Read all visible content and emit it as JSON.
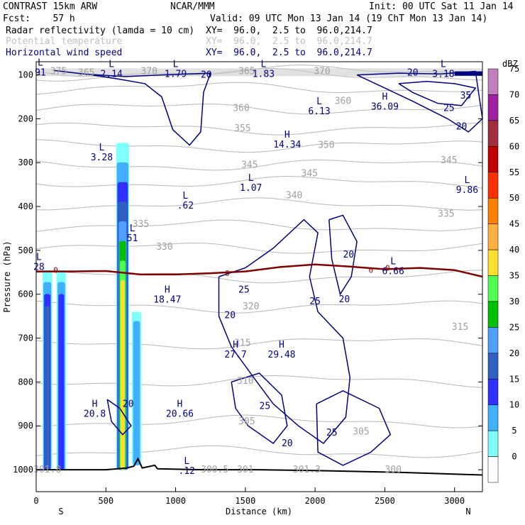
{
  "header": {
    "model": "CONTRAST 15km ARW",
    "org": "NCAR/MMM",
    "init": "Init: 00 UTC Sat 11 Jan 14",
    "fcst": "Fcst:    57 h",
    "valid": "Valid: 09 UTC Mon 13 Jan 14 (19 ChT Mon 13 Jan 14)",
    "fields": [
      {
        "name": "Radar reflectivity (lamda = 10 cm)",
        "xy": "XY=  96.0,  2.5 to  96.0,214.7",
        "color": "#000000"
      },
      {
        "name": "Potential temperature",
        "xy": "XY=  96.0,  2.5 to  96.0,214.7",
        "color": "#c0c0c0"
      },
      {
        "name": "Horizontal wind speed",
        "xy": "XY=  96.0,  2.5 to  96.0,214.7",
        "color": "#000080"
      }
    ]
  },
  "chart_data": {
    "type": "contour-cross-section",
    "xlabel": "Distance (km)",
    "ylabel": "Pressure (hPa)",
    "xlim": [
      0,
      3200
    ],
    "ylim": [
      1050,
      70
    ],
    "x_ticks": [
      0,
      500,
      1000,
      1500,
      2000,
      2500,
      3000
    ],
    "y_ticks": [
      100,
      200,
      300,
      400,
      500,
      600,
      700,
      800,
      900,
      1000
    ],
    "x_end_labels": {
      "left": "S",
      "right": "N"
    },
    "colorbar": {
      "title": "dBZ",
      "levels": [
        0,
        5,
        10,
        15,
        20,
        25,
        30,
        35,
        40,
        45,
        50,
        55,
        60,
        65,
        70,
        75
      ],
      "colors": [
        "#ffffff",
        "#80ffff",
        "#40b0ff",
        "#3030ff",
        "#3060c0",
        "#50a0ff",
        "#00c000",
        "#50ff50",
        "#ffe030",
        "#ffb040",
        "#ff8000",
        "#ff3000",
        "#c00000",
        "#a03040",
        "#a020a0",
        "#c080c0"
      ]
    },
    "reflectivity_columns": [
      {
        "x_km": 80,
        "p_top": 545,
        "p_bottom": 1000,
        "max_dbz": 20
      },
      {
        "x_km": 180,
        "p_top": 545,
        "p_bottom": 1000,
        "max_dbz": 15
      },
      {
        "x_km": 620,
        "p_top": 255,
        "p_bottom": 1000,
        "max_dbz": 40
      },
      {
        "x_km": 720,
        "p_top": 640,
        "p_bottom": 990,
        "max_dbz": 10
      }
    ],
    "freezing_level": {
      "label": "0",
      "x_km": [
        0,
        250,
        500,
        750,
        1000,
        1250,
        1500,
        1750,
        2000,
        2250,
        2500,
        2750,
        3000,
        3200
      ],
      "p_hpa": [
        548,
        548,
        547,
        555,
        555,
        552,
        548,
        538,
        532,
        537,
        543,
        540,
        545,
        560
      ]
    },
    "theta_labels": [
      {
        "v": "375",
        "x": 160,
        "p": 92
      },
      {
        "v": "365",
        "x": 360,
        "p": 95
      },
      {
        "v": "370",
        "x": 810,
        "p": 92
      },
      {
        "v": "365",
        "x": 1510,
        "p": 92
      },
      {
        "v": "370",
        "x": 2050,
        "p": 92
      },
      {
        "v": "360",
        "x": 1470,
        "p": 176
      },
      {
        "v": "360",
        "x": 2200,
        "p": 160
      },
      {
        "v": "355",
        "x": 1480,
        "p": 222
      },
      {
        "v": "350",
        "x": 2080,
        "p": 260
      },
      {
        "v": "345",
        "x": 1530,
        "p": 305
      },
      {
        "v": "345",
        "x": 1960,
        "p": 325
      },
      {
        "v": "345",
        "x": 2960,
        "p": 295
      },
      {
        "v": "340",
        "x": 1850,
        "p": 375
      },
      {
        "v": "335",
        "x": 750,
        "p": 440
      },
      {
        "v": "335",
        "x": 2940,
        "p": 417
      },
      {
        "v": "330",
        "x": 920,
        "p": 492
      },
      {
        "v": "320",
        "x": 1540,
        "p": 628
      },
      {
        "v": "315",
        "x": 1480,
        "p": 711
      },
      {
        "v": "315",
        "x": 3040,
        "p": 675
      },
      {
        "v": "310",
        "x": 1500,
        "p": 798
      },
      {
        "v": "305",
        "x": 1510,
        "p": 890
      },
      {
        "v": "305",
        "x": 2330,
        "p": 913
      },
      {
        "v": "301.8",
        "x": 80,
        "p": 1000
      },
      {
        "v": "300.5",
        "x": 1280,
        "p": 1000
      },
      {
        "v": "301",
        "x": 1500,
        "p": 1000
      },
      {
        "v": "301.3",
        "x": 1940,
        "p": 1000
      },
      {
        "v": "300",
        "x": 2560,
        "p": 1000
      }
    ],
    "wind_labels": [
      {
        "v": "20",
        "x": 1220,
        "p": 100
      },
      {
        "v": "20",
        "x": 2700,
        "p": 95
      },
      {
        "v": "35",
        "x": 3080,
        "p": 148
      },
      {
        "v": "25",
        "x": 2960,
        "p": 176
      },
      {
        "v": "20",
        "x": 3050,
        "p": 218
      },
      {
        "v": "20",
        "x": 2240,
        "p": 510
      },
      {
        "v": "25",
        "x": 1490,
        "p": 590
      },
      {
        "v": "20",
        "x": 2210,
        "p": 612
      },
      {
        "v": "25",
        "x": 2000,
        "p": 617
      },
      {
        "v": "20",
        "x": 1390,
        "p": 648
      },
      {
        "v": "20",
        "x": 660,
        "p": 850
      },
      {
        "v": "25",
        "x": 1640,
        "p": 855
      },
      {
        "v": "20",
        "x": 1800,
        "p": 940
      },
      {
        "v": "25",
        "x": 2120,
        "p": 916
      }
    ],
    "extrema": [
      {
        "t": "L",
        "v": "91",
        "x": 30,
        "p": 82
      },
      {
        "t": "L",
        "v": "2.14",
        "x": 540,
        "p": 85
      },
      {
        "t": "L",
        "v": "1.79",
        "x": 1000,
        "p": 85
      },
      {
        "t": "L",
        "v": "1.83",
        "x": 1630,
        "p": 85
      },
      {
        "t": "L",
        "v": "3.18",
        "x": 2920,
        "p": 85
      },
      {
        "t": "H",
        "v": "36.09",
        "x": 2500,
        "p": 160
      },
      {
        "t": "L",
        "v": "6.13",
        "x": 2030,
        "p": 170
      },
      {
        "t": "H",
        "v": "14.34",
        "x": 1800,
        "p": 246
      },
      {
        "t": "L",
        "v": "3.28",
        "x": 470,
        "p": 275
      },
      {
        "t": "L",
        "v": "1.07",
        "x": 1540,
        "p": 345
      },
      {
        "t": "L",
        "v": "9.86",
        "x": 3090,
        "p": 350
      },
      {
        "t": "L",
        "v": ".62",
        "x": 1070,
        "p": 385
      },
      {
        "t": "L",
        "v": "51",
        "x": 690,
        "p": 460
      },
      {
        "t": "L",
        "v": "6.66",
        "x": 2560,
        "p": 535
      },
      {
        "t": "L",
        "v": "28",
        "x": 20,
        "p": 525
      },
      {
        "t": "H",
        "v": "18.47",
        "x": 940,
        "p": 600
      },
      {
        "t": "H",
        "v": "27.7",
        "x": 1430,
        "p": 725
      },
      {
        "t": "H",
        "v": "29.48",
        "x": 1760,
        "p": 725
      },
      {
        "t": "H",
        "v": "20.8",
        "x": 420,
        "p": 860
      },
      {
        "t": "H",
        "v": "20.66",
        "x": 1030,
        "p": 860
      },
      {
        "t": "L",
        "v": ".12",
        "x": 1080,
        "p": 990
      }
    ]
  }
}
